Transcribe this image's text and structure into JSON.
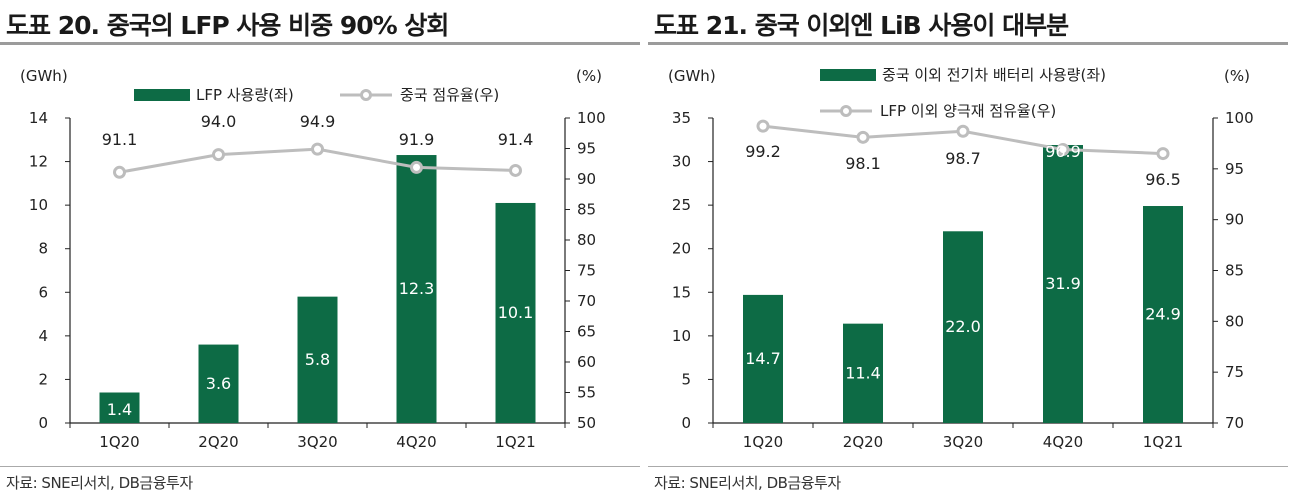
{
  "charts": [
    {
      "title": "도표 20. 중국의 LFP 사용 비중 90% 상회",
      "source": "자료: SNE리서치, DB금융투자",
      "chart_data": {
        "type": "bar",
        "categories": [
          "1Q20",
          "2Q20",
          "3Q20",
          "4Q20",
          "1Q21"
        ],
        "series": [
          {
            "name": "LFP 사용량(좌)",
            "type": "bar",
            "axis": "left",
            "values": [
              1.4,
              3.6,
              5.8,
              12.3,
              10.1
            ]
          },
          {
            "name": "중국 점유율(우)",
            "type": "line",
            "axis": "right",
            "values": [
              91.1,
              94.0,
              94.9,
              91.9,
              91.4
            ]
          }
        ],
        "bar_labels": [
          "1.4",
          "3.6",
          "5.8",
          "12.3",
          "10.1"
        ],
        "line_labels": [
          "91.1",
          "94.0",
          "94.9",
          "91.9",
          "91.4"
        ],
        "left_unit": "(GWh)",
        "right_unit": "(%)",
        "left_ticks": [
          "0",
          "2",
          "4",
          "6",
          "8",
          "10",
          "12",
          "14"
        ],
        "right_ticks": [
          "50",
          "55",
          "60",
          "65",
          "70",
          "75",
          "80",
          "85",
          "90",
          "95",
          "100"
        ],
        "ylim_left": [
          0,
          14
        ],
        "ylim_right": [
          50,
          100
        ],
        "legend_placement": "top",
        "grid": false
      }
    },
    {
      "title": "도표 21. 중국 이외엔 LiB 사용이 대부분",
      "source": "자료: SNE리서치, DB금융투자",
      "chart_data": {
        "type": "bar",
        "categories": [
          "1Q20",
          "2Q20",
          "3Q20",
          "4Q20",
          "1Q21"
        ],
        "series": [
          {
            "name": "중국 이외 전기차 배터리 사용량(좌)",
            "type": "bar",
            "axis": "left",
            "values": [
              14.7,
              11.4,
              22.0,
              31.9,
              24.9
            ]
          },
          {
            "name": "LFP 이외 양극재 점유율(우)",
            "type": "line",
            "axis": "right",
            "values": [
              99.2,
              98.1,
              98.7,
              96.9,
              96.5
            ]
          }
        ],
        "bar_labels": [
          "14.7",
          "11.4",
          "22.0",
          "31.9",
          "24.9"
        ],
        "line_labels": [
          "99.2",
          "98.1",
          "98.7",
          "96.9",
          "96.5"
        ],
        "left_unit": "(GWh)",
        "right_unit": "(%)",
        "left_ticks": [
          "0",
          "5",
          "10",
          "15",
          "20",
          "25",
          "30",
          "35"
        ],
        "right_ticks": [
          "70",
          "75",
          "80",
          "85",
          "90",
          "95",
          "100"
        ],
        "ylim_left": [
          0,
          35
        ],
        "ylim_right": [
          70,
          100
        ],
        "legend_placement": "top",
        "grid": false
      }
    }
  ],
  "colors": {
    "bar": "#0d6b45",
    "line": "#bdbdbd",
    "marker_fill": "#ffffff",
    "axis": "#222222"
  }
}
